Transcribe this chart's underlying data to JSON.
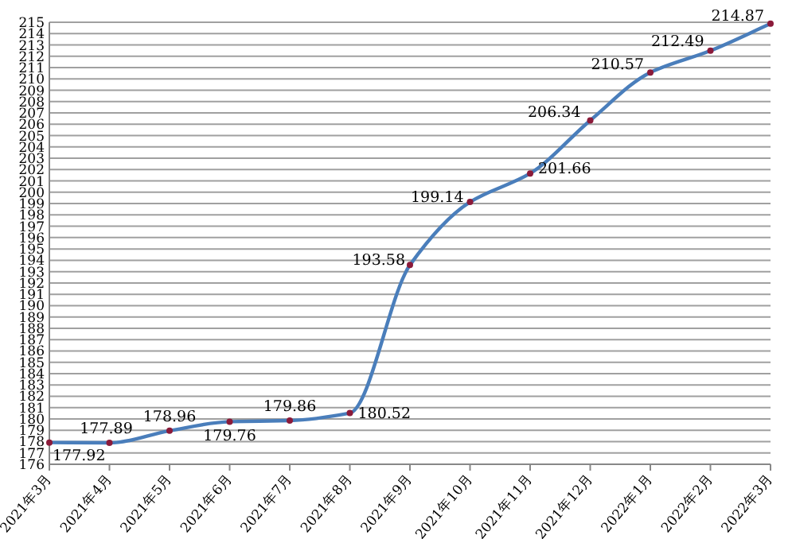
{
  "chart_data": {
    "type": "line",
    "categories": [
      "2021年3月",
      "2021年4月",
      "2021年5月",
      "2021年6月",
      "2021年7月",
      "2021年8月",
      "2021年9月",
      "2021年10月",
      "2021年11月",
      "2021年12月",
      "2022年1月",
      "2022年2月",
      "2022年3月"
    ],
    "series": [
      {
        "color": "#4a7ebb",
        "values": [
          177.92,
          177.89,
          178.96,
          179.76,
          179.86,
          180.52,
          193.58,
          199.14,
          201.66,
          206.34,
          210.57,
          212.49,
          214.87
        ]
      }
    ],
    "ylim": [
      176,
      215
    ],
    "yticks": [
      176,
      177,
      178,
      179,
      180,
      181,
      182,
      183,
      184,
      185,
      186,
      187,
      188,
      189,
      190,
      191,
      192,
      193,
      194,
      195,
      196,
      197,
      198,
      199,
      200,
      201,
      202,
      203,
      204,
      205,
      206,
      207,
      208,
      209,
      210,
      211,
      212,
      213,
      214,
      215
    ],
    "grid": "y",
    "marker": "circle",
    "data_labels": true,
    "line_style": "solid"
  }
}
